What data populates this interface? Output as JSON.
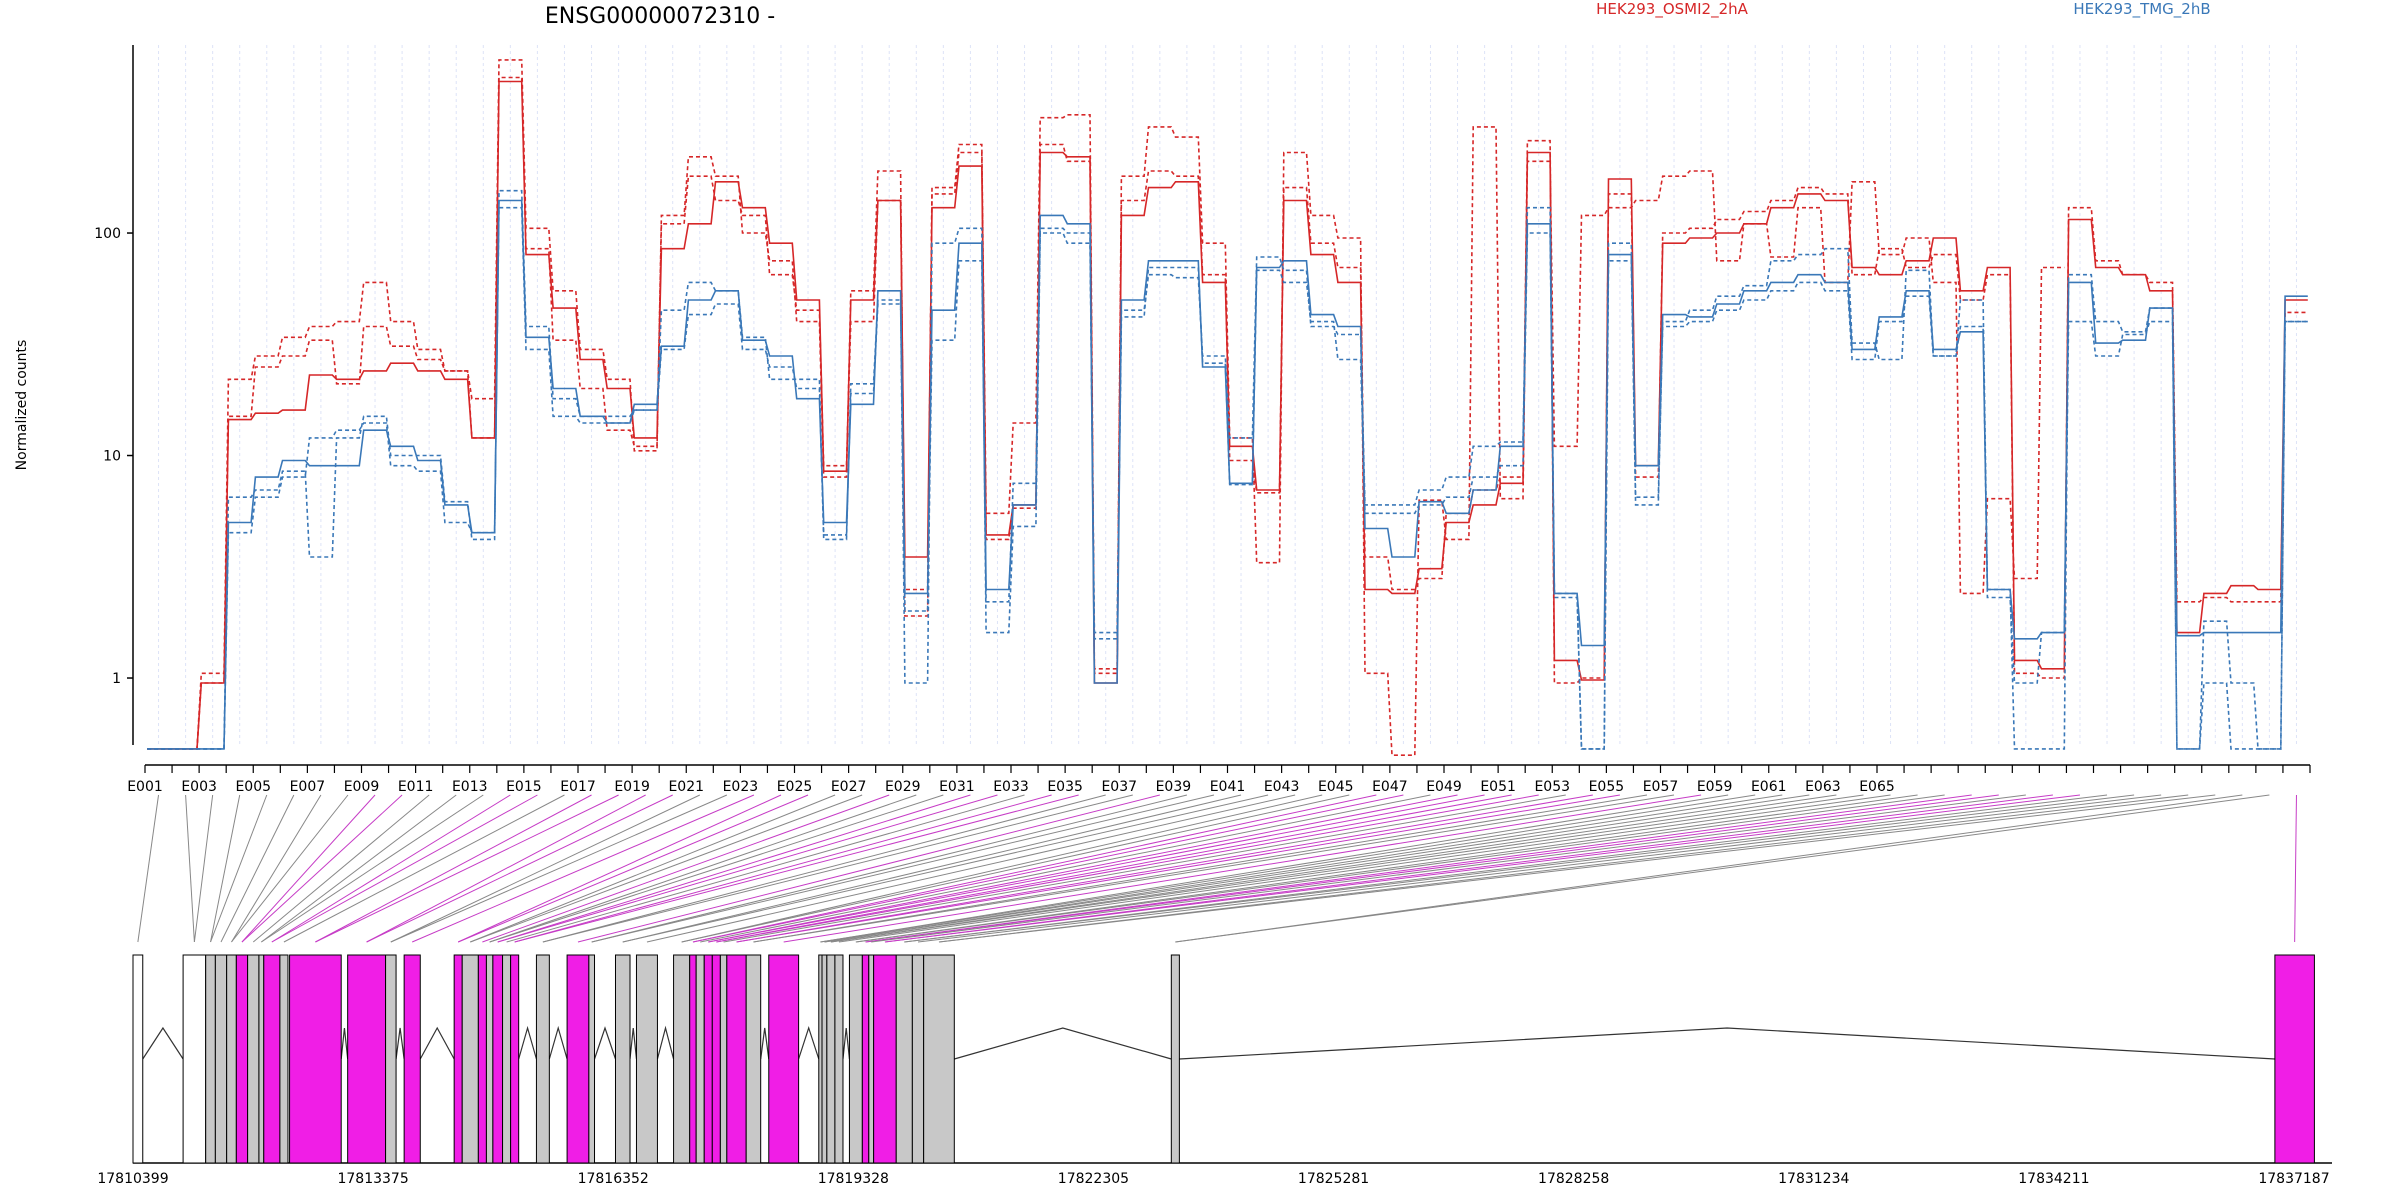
{
  "chart_data": {
    "type": "line",
    "title": "ENSG00000072310 -",
    "ylabel": "Normalized counts",
    "y_scale": "log",
    "ylim": [
      0.5,
      700
    ],
    "yticks": [
      1,
      10,
      100
    ],
    "ytick_labels": [
      "1",
      "10",
      "100"
    ],
    "legend_placement": "top-right",
    "legend": [
      {
        "label": "HEK293_OSMI2_2hA",
        "color": "#d62728"
      },
      {
        "label": "HEK293_TMG_2hB",
        "color": "#3a78b8"
      }
    ],
    "exon_labels": [
      "E001",
      "E003",
      "E005",
      "E007",
      "E009",
      "E011",
      "E013",
      "E015",
      "E017",
      "E019",
      "E021",
      "E023",
      "E025",
      "E027",
      "E029",
      "E031",
      "E033",
      "E035",
      "E037",
      "E039",
      "E041",
      "E043",
      "E045",
      "E047",
      "E049",
      "E051",
      "E053",
      "E055",
      "E057",
      "E059",
      "E061",
      "E063",
      "E065"
    ],
    "series": [
      {
        "group": "HEK293_OSMI2_2hA",
        "color": "#d62728",
        "dash": false,
        "values": [
          0.48,
          0.48,
          0.95,
          14.5,
          15.5,
          16,
          23,
          22,
          24,
          26,
          24,
          22,
          12,
          480,
          80,
          46,
          27,
          20,
          12,
          85,
          110,
          170,
          130,
          90,
          50,
          8.5,
          50,
          140,
          3.5,
          130,
          200,
          4.4,
          6,
          230,
          220,
          0.95,
          120,
          160,
          170,
          60,
          11,
          7,
          140,
          80,
          60,
          2.5,
          2.4,
          3.1,
          5,
          6,
          7.5,
          230,
          1.2,
          0.98,
          175,
          9,
          90,
          95,
          100,
          110,
          130,
          150,
          140,
          70,
          65,
          75,
          95,
          55,
          70,
          1.2,
          1.1,
          115,
          70,
          65,
          55,
          1.6,
          2.4,
          2.6,
          2.5,
          50
        ]
      },
      {
        "group": "HEK293_OSMI2_2hA",
        "color": "#d62728",
        "dash": true,
        "values": [
          0.48,
          0.48,
          1.05,
          22,
          28,
          34,
          38,
          40,
          60,
          40,
          30,
          24,
          18,
          600,
          105,
          55,
          30,
          22,
          10.5,
          120,
          220,
          180,
          100,
          75,
          40,
          8,
          55,
          190,
          1.9,
          160,
          250,
          5.5,
          14,
          330,
          340,
          1.1,
          180,
          300,
          270,
          90,
          12,
          3.3,
          230,
          120,
          95,
          1.05,
          0.45,
          6.3,
          4.2,
          300,
          6.4,
          210,
          11,
          120,
          130,
          140,
          180,
          190,
          75,
          110,
          78,
          130,
          60,
          170,
          80,
          95,
          60,
          2.4,
          6.4,
          2.8,
          70
        ]
      },
      {
        "group": "HEK293_OSMI2_2hA",
        "color": "#d62728",
        "dash": true,
        "values": [
          0.48,
          0.48,
          0.95,
          15,
          25,
          28,
          33,
          21,
          38,
          31,
          27,
          24,
          12,
          500,
          85,
          33,
          20,
          13,
          11,
          110,
          180,
          140,
          120,
          65,
          45,
          9,
          40,
          140,
          2.5,
          150,
          230,
          4.2,
          5.8,
          250,
          210,
          1.05,
          140,
          190,
          180,
          65,
          9.5,
          6.8,
          160,
          90,
          70,
          3.5,
          2.5,
          2.8,
          5.5,
          7,
          8,
          260,
          0.95,
          1.0,
          150,
          8,
          100,
          105,
          115,
          125,
          140,
          160,
          150,
          65,
          85,
          70,
          80,
          50,
          65,
          1.05,
          1.0,
          130,
          75,
          65,
          60,
          2.2,
          2.3,
          2.2,
          2.2,
          44
        ]
      },
      {
        "group": "HEK293_TMG_2hB",
        "color": "#3a78b8",
        "dash": false,
        "values": [
          0.48,
          0.48,
          0.48,
          5,
          8,
          9.5,
          9,
          9,
          13,
          11,
          9.5,
          6,
          4.5,
          140,
          34,
          20,
          15,
          14,
          17,
          31,
          50,
          55,
          33,
          28,
          18,
          5,
          17,
          55,
          2.4,
          45,
          90,
          2.5,
          6,
          120,
          110,
          0.95,
          50,
          75,
          75,
          25,
          7.5,
          70,
          75,
          43,
          38,
          4.7,
          3.5,
          6.2,
          5.5,
          7,
          11,
          110,
          2.4,
          1.4,
          80,
          9,
          43,
          42,
          48,
          55,
          60,
          65,
          60,
          30,
          42,
          55,
          30,
          36,
          2.5,
          1.5,
          1.6,
          60,
          32,
          33,
          46,
          1.55,
          1.6,
          1.6,
          1.6,
          52
        ]
      },
      {
        "group": "HEK293_TMG_2hB",
        "color": "#3a78b8",
        "dash": true,
        "values": [
          0.48,
          0.48,
          0.48,
          6.5,
          7,
          8.5,
          3.5,
          12,
          15,
          10,
          10,
          6.2,
          4.2,
          155,
          38,
          18,
          15,
          15,
          16,
          45,
          60,
          55,
          34,
          22,
          22,
          4.2,
          21,
          50,
          0.95,
          90,
          105,
          1.6,
          4.8,
          100,
          90,
          1.6,
          45,
          65,
          63,
          28,
          12,
          78,
          68,
          38,
          35,
          6,
          6,
          7,
          8,
          11,
          11.5,
          130,
          2.4,
          0.48,
          90,
          6,
          40,
          45,
          52,
          58,
          75,
          80,
          85,
          32,
          27,
          68,
          28,
          50,
          2.5,
          0.48,
          0.48,
          65,
          40,
          36,
          46,
          0.48,
          1.8,
          0.95,
          0.48,
          40
        ]
      },
      {
        "group": "HEK293_TMG_2hB",
        "color": "#3a78b8",
        "dash": true,
        "values": [
          0.48,
          0.48,
          0.48,
          4.5,
          6.5,
          8,
          12,
          13,
          14,
          9,
          8.5,
          5,
          4.5,
          130,
          30,
          15,
          14,
          14,
          16,
          30,
          43,
          48,
          30,
          25,
          20,
          4.4,
          19,
          48,
          2.0,
          33,
          75,
          2.2,
          7.5,
          105,
          100,
          1.5,
          42,
          70,
          70,
          26,
          7.4,
          68,
          60,
          40,
          27,
          5.5,
          5.5,
          6,
          6.5,
          8,
          9,
          100,
          2.3,
          0.48,
          75,
          6.5,
          38,
          40,
          45,
          50,
          55,
          60,
          55,
          27,
          40,
          52,
          28,
          38,
          2.3,
          0.95,
          1.6,
          40,
          28,
          35,
          40,
          0.48,
          0.95,
          0.48,
          0.48,
          40
        ]
      }
    ],
    "gene_model": {
      "coordinate_labels": [
        "17810399",
        "17813375",
        "17816352",
        "17819328",
        "17822305",
        "17825281",
        "17828258",
        "17831234",
        "17834211",
        "17837187"
      ],
      "exons": [
        {
          "start": 17810399,
          "end": 17810520,
          "color": "white"
        },
        {
          "start": 17811020,
          "end": 17811300,
          "color": "white"
        },
        {
          "start": 17811300,
          "end": 17811420,
          "color": "gray"
        },
        {
          "start": 17811420,
          "end": 17811560,
          "color": "gray"
        },
        {
          "start": 17811560,
          "end": 17811680,
          "color": "gray"
        },
        {
          "start": 17811680,
          "end": 17811820,
          "color": "magenta"
        },
        {
          "start": 17811820,
          "end": 17811960,
          "color": "gray"
        },
        {
          "start": 17811960,
          "end": 17812020,
          "color": "gray"
        },
        {
          "start": 17812020,
          "end": 17812220,
          "color": "magenta"
        },
        {
          "start": 17812220,
          "end": 17812320,
          "color": "gray"
        },
        {
          "start": 17812340,
          "end": 17812980,
          "color": "magenta"
        },
        {
          "start": 17813060,
          "end": 17813530,
          "color": "magenta"
        },
        {
          "start": 17813530,
          "end": 17813660,
          "color": "gray"
        },
        {
          "start": 17813760,
          "end": 17813960,
          "color": "magenta"
        },
        {
          "start": 17814380,
          "end": 17814480,
          "color": "magenta"
        },
        {
          "start": 17814480,
          "end": 17814680,
          "color": "gray"
        },
        {
          "start": 17814680,
          "end": 17814780,
          "color": "magenta"
        },
        {
          "start": 17814780,
          "end": 17814860,
          "color": "gray"
        },
        {
          "start": 17814860,
          "end": 17814980,
          "color": "magenta"
        },
        {
          "start": 17814980,
          "end": 17815080,
          "color": "gray"
        },
        {
          "start": 17815080,
          "end": 17815180,
          "color": "magenta"
        },
        {
          "start": 17815400,
          "end": 17815560,
          "color": "gray"
        },
        {
          "start": 17815780,
          "end": 17816050,
          "color": "magenta"
        },
        {
          "start": 17816050,
          "end": 17816120,
          "color": "gray"
        },
        {
          "start": 17816380,
          "end": 17816560,
          "color": "gray"
        },
        {
          "start": 17816640,
          "end": 17816900,
          "color": "gray"
        },
        {
          "start": 17817100,
          "end": 17817300,
          "color": "gray"
        },
        {
          "start": 17817300,
          "end": 17817380,
          "color": "magenta"
        },
        {
          "start": 17817380,
          "end": 17817480,
          "color": "gray"
        },
        {
          "start": 17817480,
          "end": 17817580,
          "color": "magenta"
        },
        {
          "start": 17817580,
          "end": 17817680,
          "color": "magenta"
        },
        {
          "start": 17817680,
          "end": 17817760,
          "color": "gray"
        },
        {
          "start": 17817760,
          "end": 17818000,
          "color": "magenta"
        },
        {
          "start": 17818000,
          "end": 17818180,
          "color": "gray"
        },
        {
          "start": 17818280,
          "end": 17818650,
          "color": "magenta"
        },
        {
          "start": 17818900,
          "end": 17818940,
          "color": "gray"
        },
        {
          "start": 17818940,
          "end": 17819000,
          "color": "gray"
        },
        {
          "start": 17819000,
          "end": 17819100,
          "color": "gray"
        },
        {
          "start": 17819100,
          "end": 17819200,
          "color": "gray"
        },
        {
          "start": 17819280,
          "end": 17819440,
          "color": "gray"
        },
        {
          "start": 17819440,
          "end": 17819520,
          "color": "magenta"
        },
        {
          "start": 17819520,
          "end": 17819580,
          "color": "gray"
        },
        {
          "start": 17819580,
          "end": 17819860,
          "color": "magenta"
        },
        {
          "start": 17819860,
          "end": 17820060,
          "color": "gray"
        },
        {
          "start": 17820060,
          "end": 17820200,
          "color": "gray"
        },
        {
          "start": 17820200,
          "end": 17820580,
          "color": "gray"
        },
        {
          "start": 17823270,
          "end": 17823370,
          "color": "gray"
        },
        {
          "start": 17836950,
          "end": 17837440,
          "color": "magenta"
        }
      ]
    }
  }
}
